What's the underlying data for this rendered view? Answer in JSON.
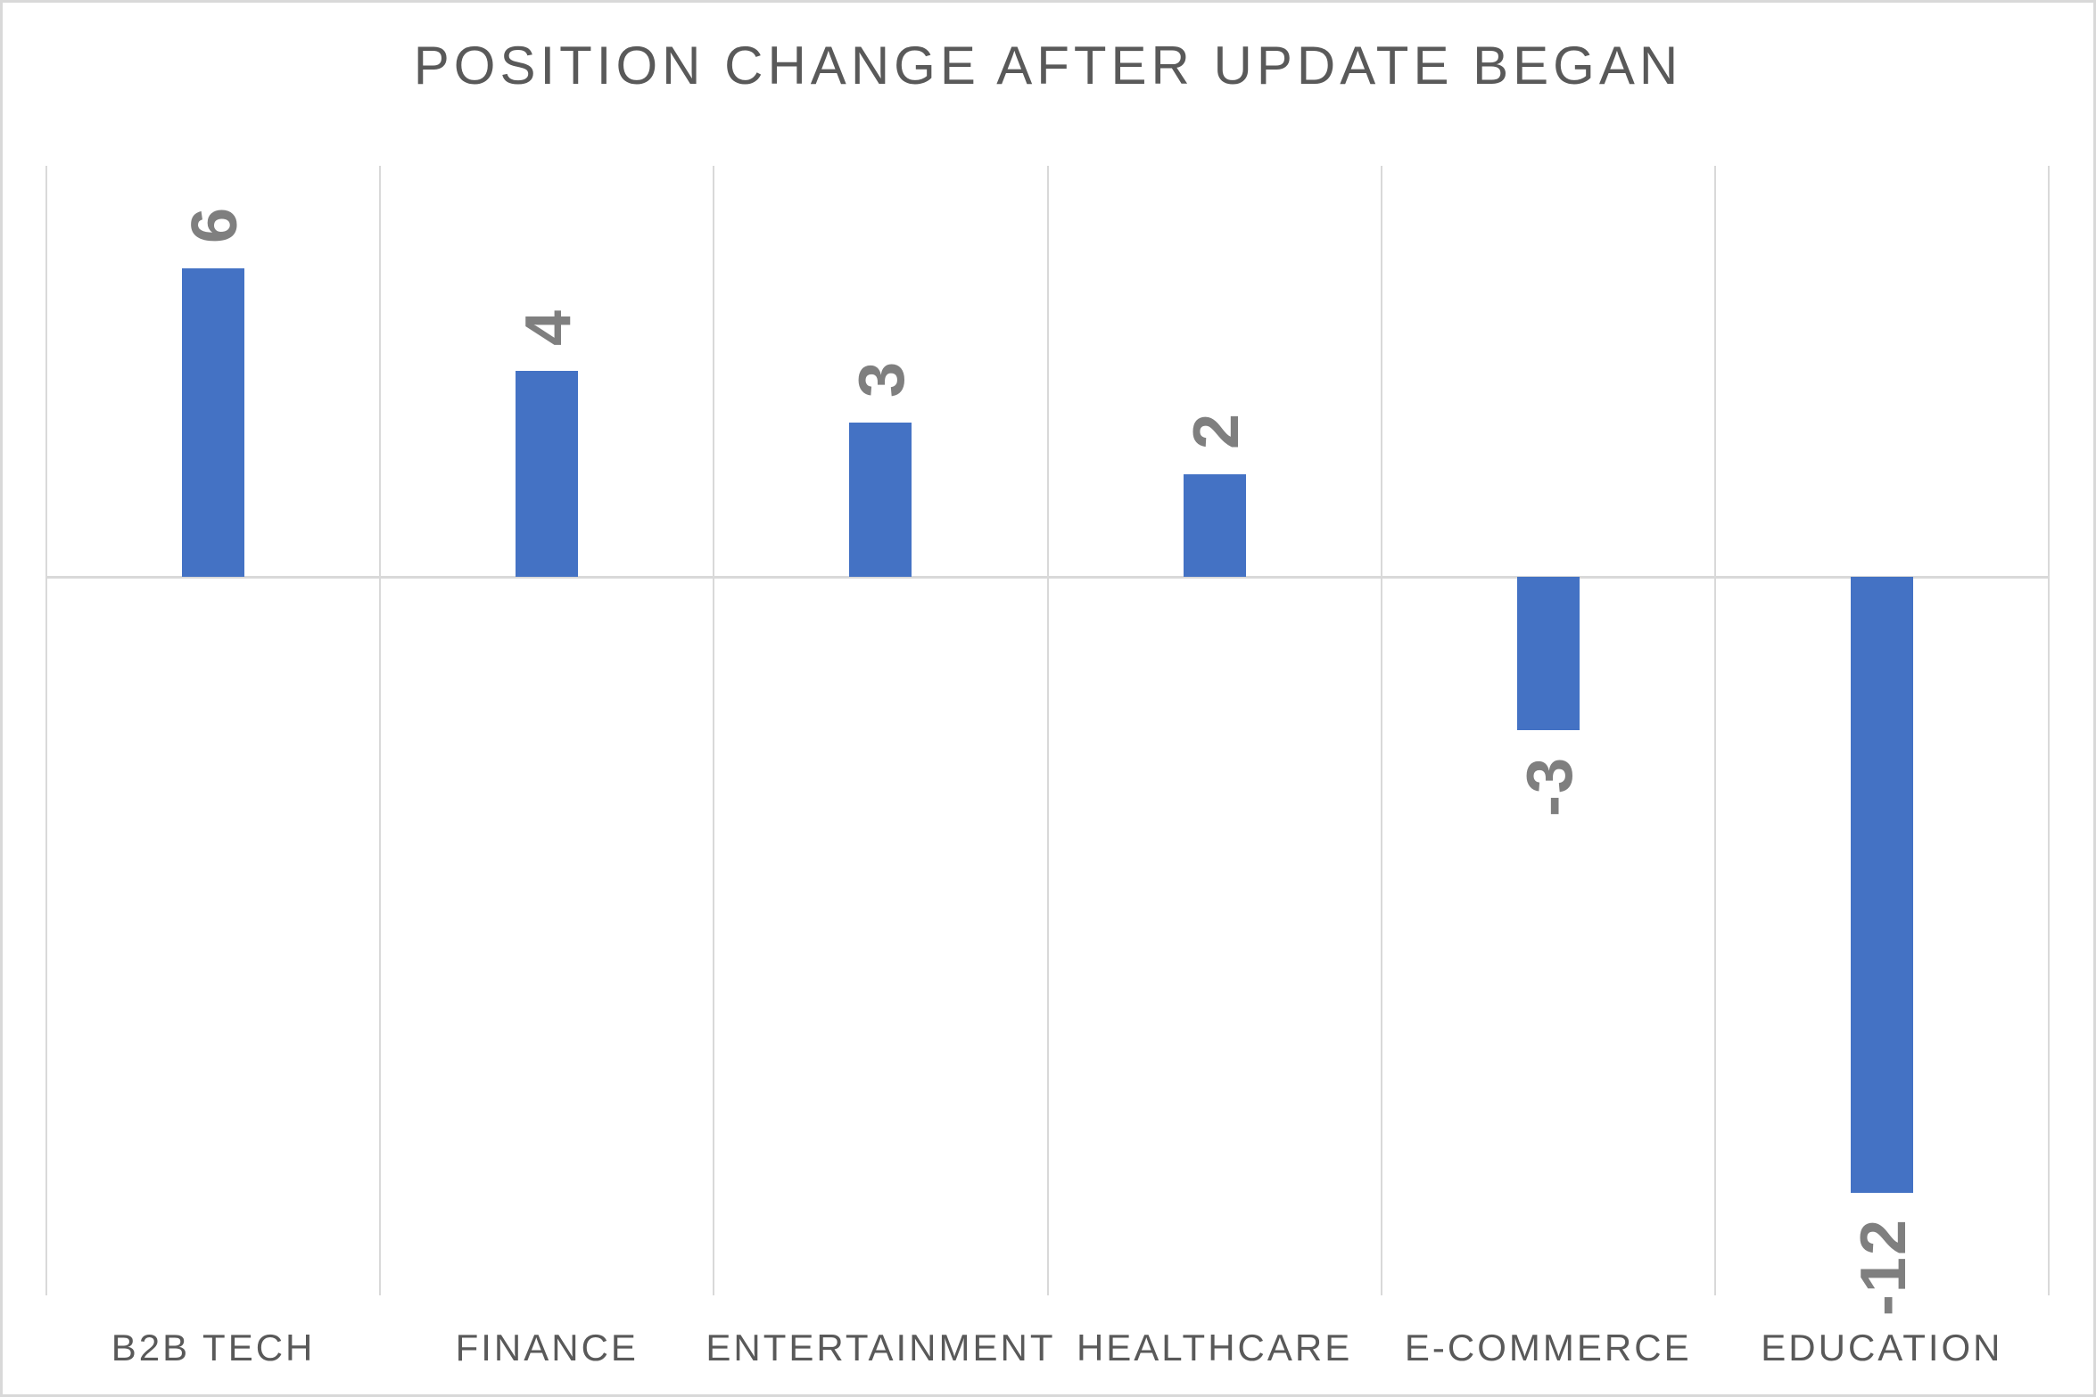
{
  "chart_data": {
    "type": "bar",
    "title": "POSITION CHANGE AFTER UPDATE BEGAN",
    "categories": [
      "B2B TECH",
      "FINANCE",
      "ENTERTAINMENT",
      "HEALTHCARE",
      "E-COMMERCE",
      "EDUCATION"
    ],
    "values": [
      6,
      4,
      3,
      2,
      -3,
      -12
    ],
    "data_labels": [
      "6",
      "4",
      "3",
      "2",
      "-3",
      "-12"
    ],
    "data_label_rotation": "90deg-ccw-read-bottom-to-top",
    "xlabel": "",
    "ylabel": "",
    "ylim": [
      -14,
      8
    ],
    "grid": "vertical-category-separators-only",
    "legend": "none",
    "axis_tick_labels": "none",
    "colors": {
      "bar": "#4472C4",
      "data_label": "#7F7F7F",
      "category_label": "#595959",
      "title": "#595959",
      "gridline": "#D9D9D9",
      "zero_line": "#D9D9D9",
      "border": "#D9D9D9",
      "background": "#FFFFFF"
    }
  }
}
